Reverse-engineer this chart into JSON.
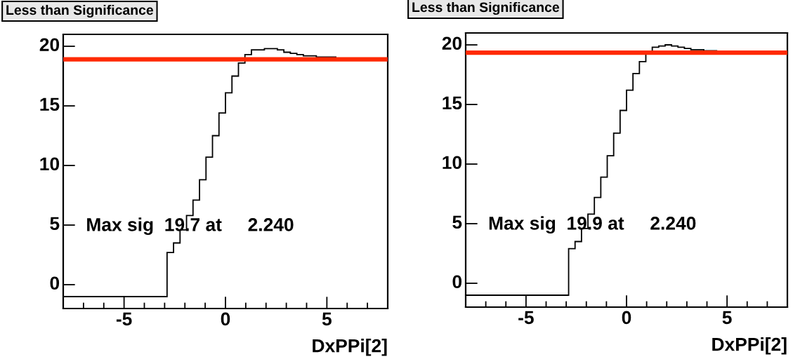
{
  "chart_data": [
    {
      "type": "histogram",
      "title": "Less than Significance",
      "xlabel": "DxPPi[2]",
      "annotations": [
        "Max sig  19.7 at     2.240"
      ],
      "bins": [
        -8,
        -7.68,
        -7.36,
        -7.04,
        -6.72,
        -6.4,
        -6.08,
        -5.76,
        -5.44,
        -5.12,
        -4.8,
        -4.48,
        -4.16,
        -3.84,
        -3.52,
        -3.2,
        -2.88,
        -2.56,
        -2.24,
        -1.92,
        -1.6,
        -1.28,
        -0.96,
        -0.64,
        -0.32,
        0,
        0.32,
        0.64,
        0.96,
        1.28,
        1.6,
        1.92,
        2.24,
        2.56,
        2.88,
        3.2,
        3.52,
        3.84,
        4.16,
        4.48,
        4.8,
        5.12,
        5.44,
        5.76,
        6.08,
        6.4,
        6.72,
        7.04,
        7.36,
        7.68,
        8
      ],
      "values": [
        -1,
        -1,
        -1,
        -1,
        -1,
        -1,
        -1,
        -1,
        -1,
        -1,
        -1,
        -1,
        -1,
        -1,
        -1,
        -1,
        2.7,
        3.5,
        4.6,
        5.8,
        7.1,
        8.8,
        10.7,
        12.5,
        14.4,
        16.1,
        17.5,
        18.6,
        19.3,
        19.7,
        19.7,
        19.8,
        19.8,
        19.7,
        19.5,
        19.4,
        19.3,
        19.2,
        19.2,
        19.1,
        19.1,
        19.1,
        19.0,
        19.0,
        19.0,
        19.0,
        19.0,
        19.0,
        19.0,
        19.0
      ],
      "color": "#000000",
      "xlim": [
        -8,
        8
      ],
      "ylim": [
        -2,
        21
      ],
      "xticks": [
        {
          "value": -7,
          "label": null
        },
        {
          "value": -6,
          "label": null
        },
        {
          "value": -5,
          "label": "-5"
        },
        {
          "value": -4,
          "label": null
        },
        {
          "value": -3,
          "label": null
        },
        {
          "value": -2,
          "label": null
        },
        {
          "value": -1,
          "label": null
        },
        0,
        {
          "value": 1,
          "label": null
        },
        {
          "value": 2,
          "label": null
        },
        {
          "value": 3,
          "label": null
        },
        {
          "value": 4,
          "label": null
        },
        5,
        {
          "value": 6,
          "label": null
        },
        {
          "value": 7,
          "label": null
        }
      ],
      "yticks": [
        0,
        5,
        10,
        15,
        20
      ],
      "ref_lines": [
        {
          "axis": "y",
          "value": 18.9,
          "color": "#ff2a00"
        }
      ],
      "grid": false
    },
    {
      "type": "histogram",
      "title": "Less than Significance",
      "xlabel": "DxPPi[2]",
      "annotations": [
        "Max sig  19.9 at     2.240"
      ],
      "bins": [
        -8,
        -7.68,
        -7.36,
        -7.04,
        -6.72,
        -6.4,
        -6.08,
        -5.76,
        -5.44,
        -5.12,
        -4.8,
        -4.48,
        -4.16,
        -3.84,
        -3.52,
        -3.2,
        -2.88,
        -2.56,
        -2.24,
        -1.92,
        -1.6,
        -1.28,
        -0.96,
        -0.64,
        -0.32,
        0,
        0.32,
        0.64,
        0.96,
        1.28,
        1.6,
        1.92,
        2.24,
        2.56,
        2.88,
        3.2,
        3.52,
        3.84,
        4.16,
        4.48,
        4.8,
        5.12,
        5.44,
        5.76,
        6.08,
        6.4,
        6.72,
        7.04,
        7.36,
        7.68,
        8
      ],
      "values": [
        -1,
        -1,
        -1,
        -1,
        -1,
        -1,
        -1,
        -1,
        -1,
        -1,
        -1,
        -1,
        -1,
        -1,
        -1,
        -1,
        2.9,
        3.5,
        4.6,
        5.8,
        7.2,
        8.9,
        10.7,
        12.6,
        14.5,
        16.2,
        17.6,
        18.6,
        19.4,
        19.8,
        19.9,
        20.0,
        19.9,
        19.8,
        19.7,
        19.6,
        19.6,
        19.5,
        19.5,
        19.4,
        19.4,
        19.4,
        19.4,
        19.4,
        19.4,
        19.4,
        19.4,
        19.4,
        19.4,
        19.4
      ],
      "color": "#000000",
      "xlim": [
        -8,
        8
      ],
      "ylim": [
        -2,
        21
      ],
      "xticks": [
        {
          "value": -7,
          "label": null
        },
        {
          "value": -6,
          "label": null
        },
        {
          "value": -5,
          "label": "-5"
        },
        {
          "value": -4,
          "label": null
        },
        {
          "value": -3,
          "label": null
        },
        {
          "value": -2,
          "label": null
        },
        {
          "value": -1,
          "label": null
        },
        0,
        {
          "value": 1,
          "label": null
        },
        {
          "value": 2,
          "label": null
        },
        {
          "value": 3,
          "label": null
        },
        {
          "value": 4,
          "label": null
        },
        5,
        {
          "value": 6,
          "label": null
        },
        {
          "value": 7,
          "label": null
        }
      ],
      "yticks": [
        0,
        5,
        10,
        15,
        20
      ],
      "ref_lines": [
        {
          "axis": "y",
          "value": 19.35,
          "color": "#ff2a00"
        }
      ],
      "grid": false
    }
  ]
}
